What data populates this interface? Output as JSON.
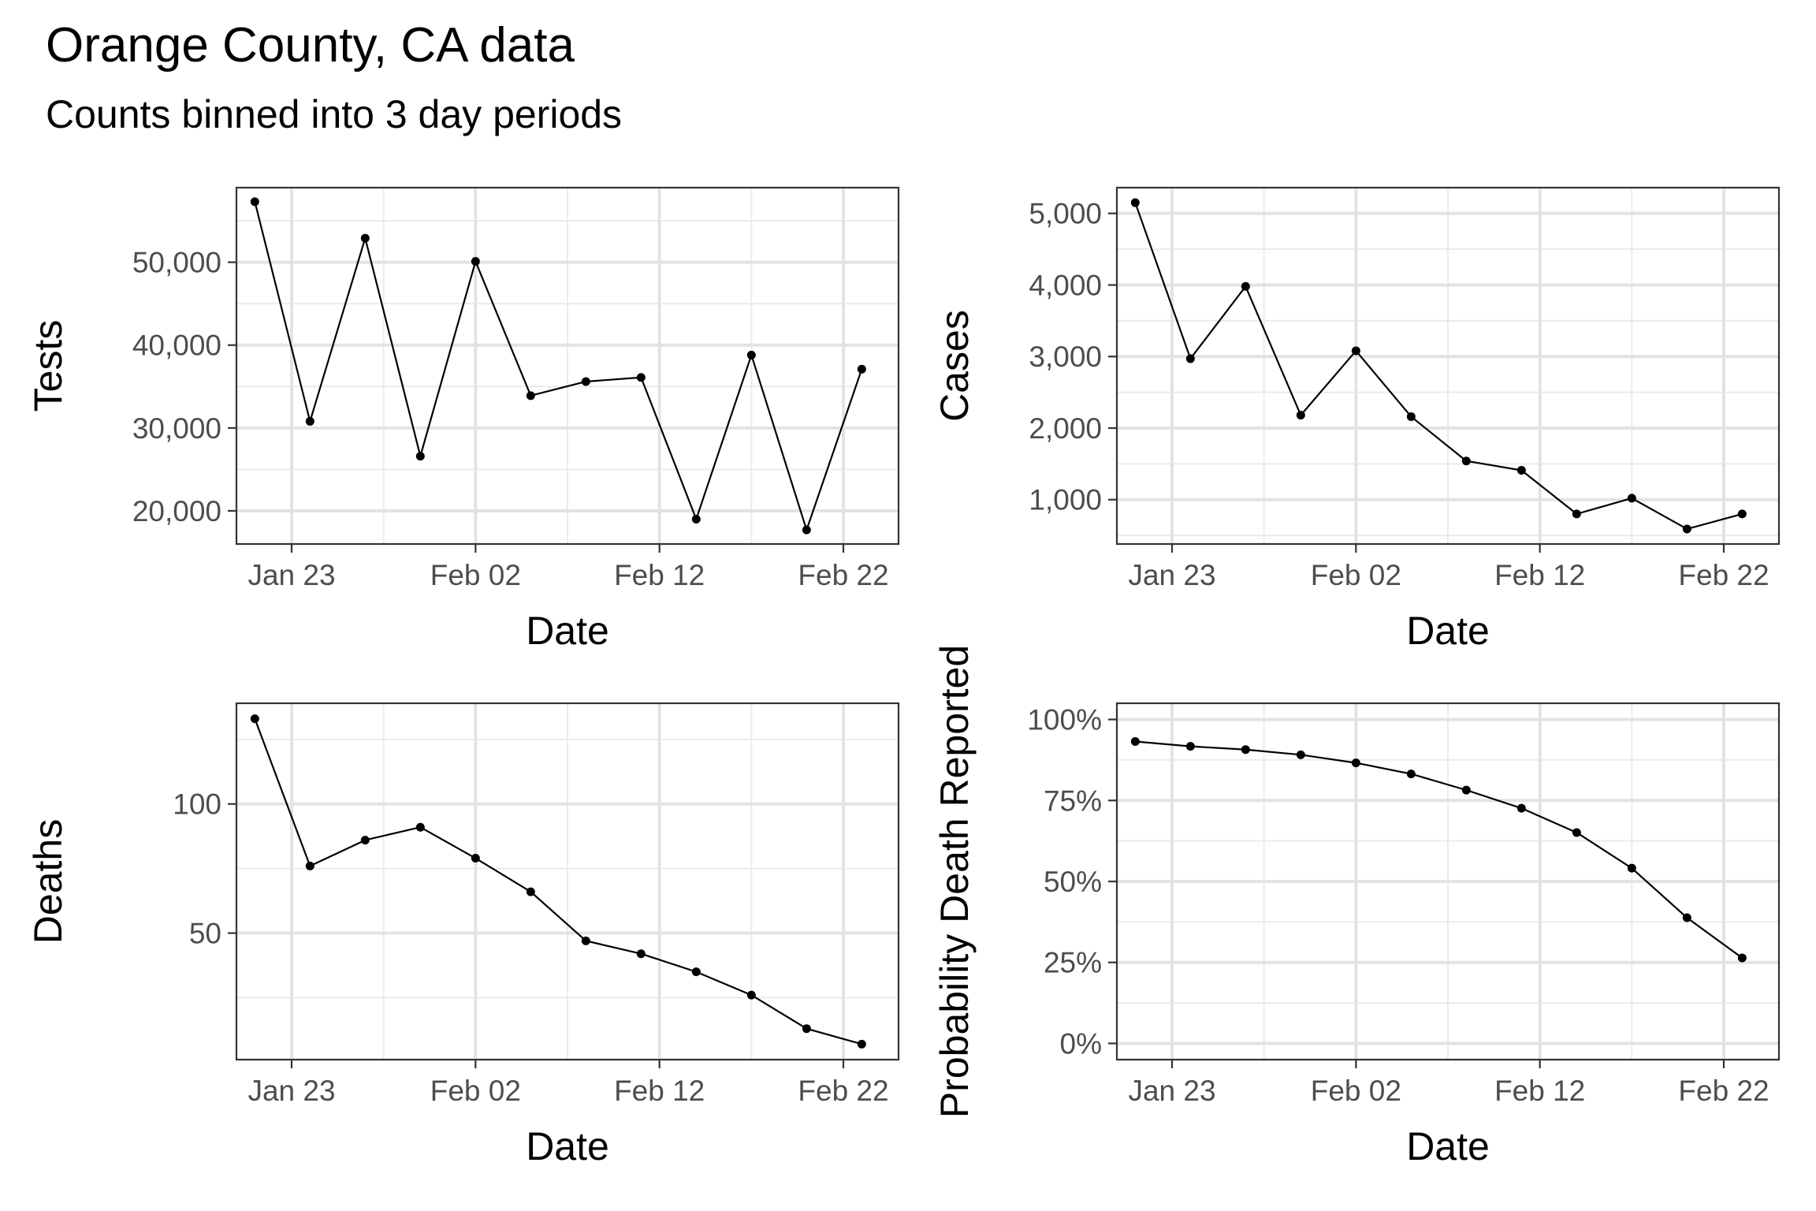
{
  "title": "Orange County, CA data",
  "subtitle": "Counts binned into 3 day periods",
  "chart_data": [
    {
      "type": "line",
      "id": "tests",
      "xlabel": "Date",
      "ylabel": "Tests",
      "x": [
        "2021-01-21",
        "2021-01-24",
        "2021-01-27",
        "2021-01-30",
        "2021-02-02",
        "2021-02-05",
        "2021-02-08",
        "2021-02-11",
        "2021-02-14",
        "2021-02-17",
        "2021-02-20",
        "2021-02-23"
      ],
      "values": [
        57300,
        30800,
        52900,
        26600,
        50100,
        33900,
        35600,
        36100,
        19000,
        38800,
        17700,
        37100
      ],
      "xlim": [
        "2021-01-20",
        "2021-02-25"
      ],
      "ylim": [
        16000,
        59000
      ],
      "x_ticks": [
        {
          "date": "2021-01-23",
          "label": "Jan 23"
        },
        {
          "date": "2021-02-02",
          "label": "Feb 02"
        },
        {
          "date": "2021-02-12",
          "label": "Feb 12"
        },
        {
          "date": "2021-02-22",
          "label": "Feb 22"
        }
      ],
      "y_ticks": [
        {
          "value": 20000,
          "label": "20,000"
        },
        {
          "value": 30000,
          "label": "30,000"
        },
        {
          "value": 40000,
          "label": "40,000"
        },
        {
          "value": 50000,
          "label": "50,000"
        }
      ],
      "grid": true
    },
    {
      "type": "line",
      "id": "cases",
      "xlabel": "Date",
      "ylabel": "Cases",
      "x": [
        "2021-01-21",
        "2021-01-24",
        "2021-01-27",
        "2021-01-30",
        "2021-02-02",
        "2021-02-05",
        "2021-02-08",
        "2021-02-11",
        "2021-02-14",
        "2021-02-17",
        "2021-02-20",
        "2021-02-23"
      ],
      "values": [
        5150,
        2970,
        3980,
        2180,
        3080,
        2160,
        1540,
        1410,
        800,
        1020,
        590,
        800
      ],
      "xlim": [
        "2021-01-20",
        "2021-02-25"
      ],
      "ylim": [
        380,
        5360
      ],
      "x_ticks": [
        {
          "date": "2021-01-23",
          "label": "Jan 23"
        },
        {
          "date": "2021-02-02",
          "label": "Feb 02"
        },
        {
          "date": "2021-02-12",
          "label": "Feb 12"
        },
        {
          "date": "2021-02-22",
          "label": "Feb 22"
        }
      ],
      "y_ticks": [
        {
          "value": 1000,
          "label": "1,000"
        },
        {
          "value": 2000,
          "label": "2,000"
        },
        {
          "value": 3000,
          "label": "3,000"
        },
        {
          "value": 4000,
          "label": "4,000"
        },
        {
          "value": 5000,
          "label": "5,000"
        }
      ],
      "grid": true
    },
    {
      "type": "line",
      "id": "deaths",
      "xlabel": "Date",
      "ylabel": "Deaths",
      "x": [
        "2021-01-21",
        "2021-01-24",
        "2021-01-27",
        "2021-01-30",
        "2021-02-02",
        "2021-02-05",
        "2021-02-08",
        "2021-02-11",
        "2021-02-14",
        "2021-02-17",
        "2021-02-20",
        "2021-02-23"
      ],
      "values": [
        133,
        76,
        86,
        91,
        79,
        66,
        47,
        42,
        35,
        26,
        13,
        7
      ],
      "xlim": [
        "2021-01-20",
        "2021-02-25"
      ],
      "ylim": [
        1,
        139
      ],
      "x_ticks": [
        {
          "date": "2021-01-23",
          "label": "Jan 23"
        },
        {
          "date": "2021-02-02",
          "label": "Feb 02"
        },
        {
          "date": "2021-02-12",
          "label": "Feb 12"
        },
        {
          "date": "2021-02-22",
          "label": "Feb 22"
        }
      ],
      "y_ticks": [
        {
          "value": 50,
          "label": "50"
        },
        {
          "value": 100,
          "label": "100"
        }
      ],
      "grid": true
    },
    {
      "type": "line",
      "id": "probability",
      "xlabel": "Date",
      "ylabel": "Probability Death Reported",
      "x": [
        "2021-01-21",
        "2021-01-24",
        "2021-01-27",
        "2021-01-30",
        "2021-02-02",
        "2021-02-05",
        "2021-02-08",
        "2021-02-11",
        "2021-02-14",
        "2021-02-17",
        "2021-02-20",
        "2021-02-23"
      ],
      "values": [
        0.932,
        0.917,
        0.907,
        0.891,
        0.866,
        0.832,
        0.782,
        0.726,
        0.651,
        0.541,
        0.388,
        0.264
      ],
      "xlim": [
        "2021-01-20",
        "2021-02-25"
      ],
      "ylim": [
        -0.05,
        1.05
      ],
      "x_ticks": [
        {
          "date": "2021-01-23",
          "label": "Jan 23"
        },
        {
          "date": "2021-02-02",
          "label": "Feb 02"
        },
        {
          "date": "2021-02-12",
          "label": "Feb 12"
        },
        {
          "date": "2021-02-22",
          "label": "Feb 22"
        }
      ],
      "y_ticks": [
        {
          "value": 0,
          "label": "0%"
        },
        {
          "value": 0.25,
          "label": "25%"
        },
        {
          "value": 0.5,
          "label": "50%"
        },
        {
          "value": 0.75,
          "label": "75%"
        },
        {
          "value": 1.0,
          "label": "100%"
        }
      ],
      "grid": true
    }
  ]
}
